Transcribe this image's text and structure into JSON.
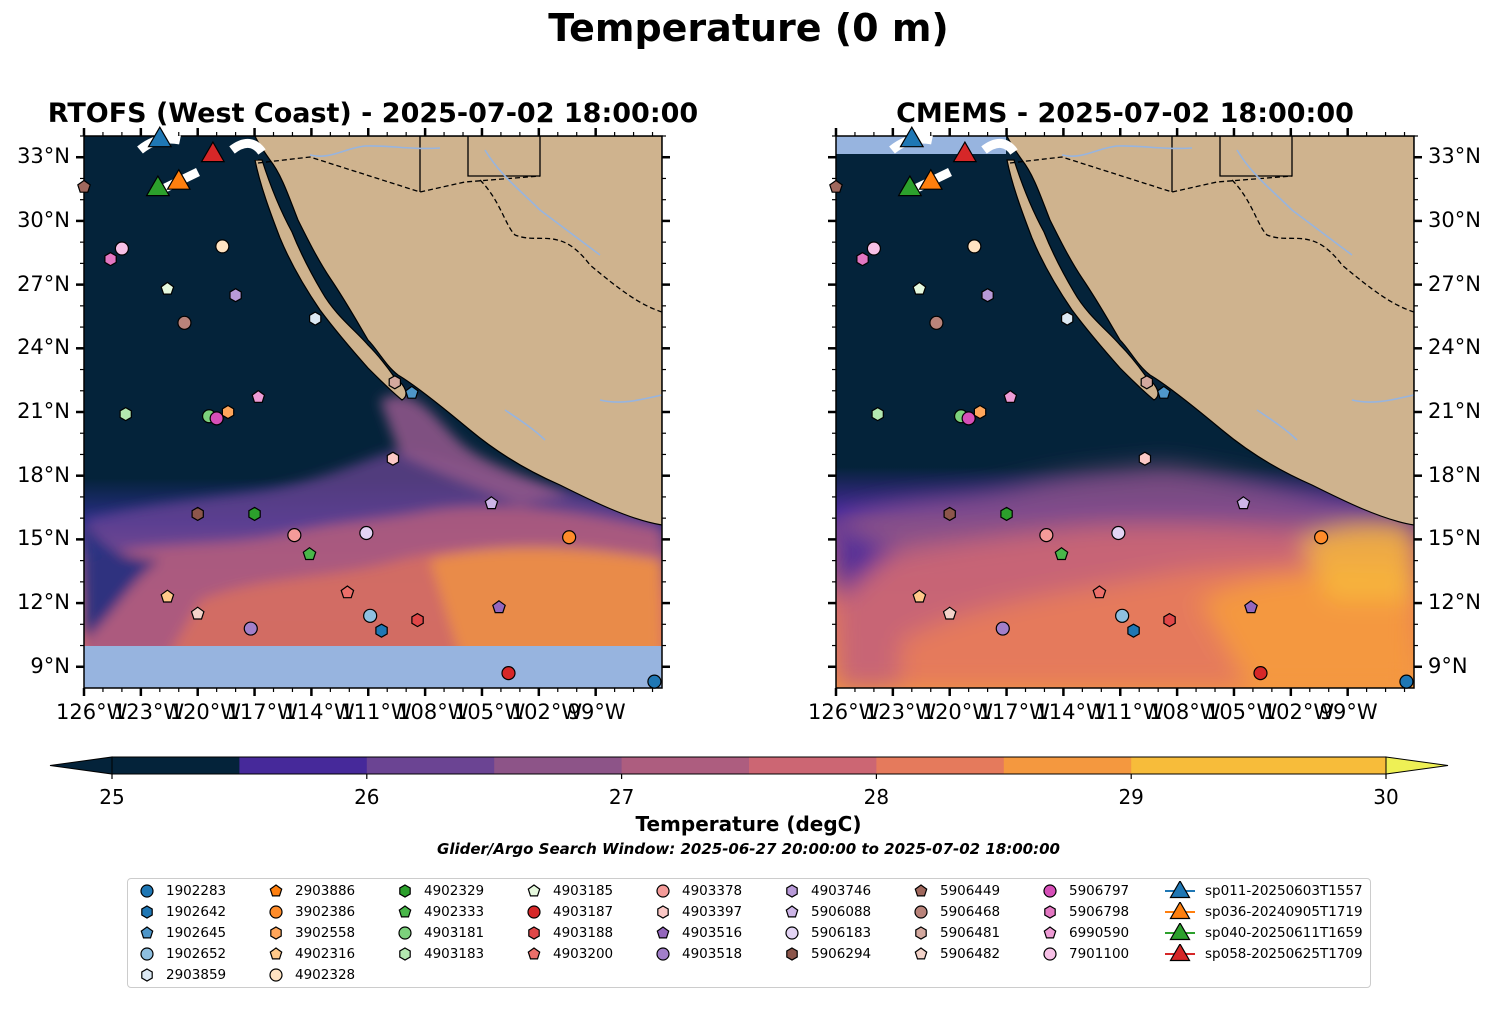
{
  "figure_title": "Temperature (0 m)",
  "panels": [
    {
      "title": "RTOFS (West Coast) - 2025-07-02 18:00:00"
    },
    {
      "title": "CMEMS - 2025-07-02 18:00:00"
    }
  ],
  "map": {
    "lon_range": [
      -126,
      -95.5
    ],
    "lat_range": [
      8,
      34
    ],
    "lon_tick_labels": [
      "126°W",
      "123°W",
      "120°W",
      "117°W",
      "114°W",
      "111°W",
      "108°W",
      "105°W",
      "102°W",
      "99°W"
    ],
    "lat_tick_labels": [
      "9°N",
      "12°N",
      "15°N",
      "18°N",
      "21°N",
      "24°N",
      "27°N",
      "30°N",
      "33°N"
    ],
    "land_color": "#cfb38e",
    "no_data_color": "#97b4df",
    "boundary_style": "dashed"
  },
  "colorbar": {
    "label": "Temperature (degC)",
    "tick_labels": [
      "25",
      "26",
      "27",
      "28",
      "29",
      "30"
    ],
    "range": [
      25,
      30
    ],
    "extend": "both",
    "colors": [
      "#04233a",
      "#20307f",
      "#46299a",
      "#6b4493",
      "#8d5488",
      "#ad5d7f",
      "#cc6673",
      "#e57a5c",
      "#f4983f",
      "#f7bc3a",
      "#eef055"
    ]
  },
  "search_window": "Glider/Argo Search Window: 2025-06-27 20:00:00 to 2025-07-02 18:00:00",
  "legend": [
    {
      "label": "1902283",
      "marker": "circle",
      "color": "#1f77b4"
    },
    {
      "label": "1902642",
      "marker": "hexagon",
      "color": "#1f77b4"
    },
    {
      "label": "1902645",
      "marker": "pentagon",
      "color": "#4e96c9"
    },
    {
      "label": "1902652",
      "marker": "circle",
      "color": "#8ebfe0"
    },
    {
      "label": "2903859",
      "marker": "hexagon",
      "color": "#dce9f4"
    },
    {
      "label": "2903886",
      "marker": "pentagon",
      "color": "#ff7f0e"
    },
    {
      "label": "3902386",
      "marker": "circle",
      "color": "#ff8c2a"
    },
    {
      "label": "3902558",
      "marker": "hexagon",
      "color": "#ffa65b"
    },
    {
      "label": "4902316",
      "marker": "pentagon",
      "color": "#ffc98a"
    },
    {
      "label": "4902328",
      "marker": "circle",
      "color": "#ffe3c2"
    },
    {
      "label": "4902329",
      "marker": "hexagon",
      "color": "#2ca02c"
    },
    {
      "label": "4902333",
      "marker": "pentagon",
      "color": "#49b649"
    },
    {
      "label": "4903181",
      "marker": "circle",
      "color": "#7cd17c"
    },
    {
      "label": "4903183",
      "marker": "hexagon",
      "color": "#b3e8b0"
    },
    {
      "label": "4903185",
      "marker": "pentagon",
      "color": "#e6f9de"
    },
    {
      "label": "4903187",
      "marker": "circle",
      "color": "#d62728"
    },
    {
      "label": "4903188",
      "marker": "hexagon",
      "color": "#e04748"
    },
    {
      "label": "4903200",
      "marker": "pentagon",
      "color": "#ec6f6a"
    },
    {
      "label": "4903378",
      "marker": "circle",
      "color": "#f49b99"
    },
    {
      "label": "4903397",
      "marker": "hexagon",
      "color": "#fbc8c6"
    },
    {
      "label": "4903516",
      "marker": "pentagon",
      "color": "#9467bd"
    },
    {
      "label": "4903518",
      "marker": "circle",
      "color": "#a27fca"
    },
    {
      "label": "4903746",
      "marker": "hexagon",
      "color": "#b89ad8"
    },
    {
      "label": "5906088",
      "marker": "pentagon",
      "color": "#cdb5e7"
    },
    {
      "label": "5906183",
      "marker": "circle",
      "color": "#e3d4f4"
    },
    {
      "label": "5906294",
      "marker": "hexagon",
      "color": "#8c564b"
    },
    {
      "label": "5906449",
      "marker": "pentagon",
      "color": "#a0685d"
    },
    {
      "label": "5906468",
      "marker": "circle",
      "color": "#b9837a"
    },
    {
      "label": "5906481",
      "marker": "hexagon",
      "color": "#d3a89e"
    },
    {
      "label": "5906482",
      "marker": "pentagon",
      "color": "#f3d3c9"
    },
    {
      "label": "5906797",
      "marker": "circle",
      "color": "#d64fb8"
    },
    {
      "label": "5906798",
      "marker": "hexagon",
      "color": "#e377c2"
    },
    {
      "label": "6990590",
      "marker": "pentagon",
      "color": "#ee9bd5"
    },
    {
      "label": "7901100",
      "marker": "circle",
      "color": "#f7c0e6"
    },
    {
      "label": "sp011-20250603T1557",
      "marker": "triangle",
      "color": "#1f77b4"
    },
    {
      "label": "sp036-20240905T1719",
      "marker": "triangle",
      "color": "#ff7f0e"
    },
    {
      "label": "sp040-20250611T1659",
      "marker": "triangle",
      "color": "#2ca02c"
    },
    {
      "label": "sp058-20250625T1709",
      "marker": "triangle",
      "color": "#d62728"
    }
  ],
  "observations": [
    {
      "id": "1902283",
      "lon": -95.9,
      "lat": 8.3
    },
    {
      "id": "1902642",
      "lon": -110.3,
      "lat": 10.7
    },
    {
      "id": "1902645",
      "lon": -108.7,
      "lat": 21.9
    },
    {
      "id": "1902652",
      "lon": -110.9,
      "lat": 11.4
    },
    {
      "id": "2903859",
      "lon": -113.8,
      "lat": 25.4
    },
    {
      "id": "2903886",
      "lon": -121.0,
      "lat": 31.8
    },
    {
      "id": "3902386",
      "lon": -100.4,
      "lat": 15.1
    },
    {
      "id": "3902558",
      "lon": -118.4,
      "lat": 21.0
    },
    {
      "id": "4902316",
      "lon": -121.6,
      "lat": 12.3
    },
    {
      "id": "4902328",
      "lon": -118.7,
      "lat": 28.8
    },
    {
      "id": "4902329",
      "lon": -117.0,
      "lat": 16.2
    },
    {
      "id": "4902333",
      "lon": -114.1,
      "lat": 14.3
    },
    {
      "id": "4903181",
      "lon": -119.4,
      "lat": 20.8
    },
    {
      "id": "4903183",
      "lon": -123.8,
      "lat": 20.9
    },
    {
      "id": "4903185",
      "lon": -121.6,
      "lat": 26.8
    },
    {
      "id": "4903187",
      "lon": -103.6,
      "lat": 8.7
    },
    {
      "id": "4903188",
      "lon": -108.4,
      "lat": 11.2
    },
    {
      "id": "4903200",
      "lon": -112.1,
      "lat": 12.5
    },
    {
      "id": "4903378",
      "lon": -114.9,
      "lat": 15.2
    },
    {
      "id": "4903397",
      "lon": -109.7,
      "lat": 18.8
    },
    {
      "id": "4903516",
      "lon": -104.1,
      "lat": 11.8
    },
    {
      "id": "4903518",
      "lon": -117.2,
      "lat": 10.8
    },
    {
      "id": "4903746",
      "lon": -118.0,
      "lat": 26.5
    },
    {
      "id": "5906088",
      "lon": -104.5,
      "lat": 16.7
    },
    {
      "id": "5906183",
      "lon": -111.1,
      "lat": 15.3
    },
    {
      "id": "5906294",
      "lon": -120.0,
      "lat": 16.2
    },
    {
      "id": "5906449",
      "lon": -126.0,
      "lat": 31.6
    },
    {
      "id": "5906468",
      "lon": -120.7,
      "lat": 25.2
    },
    {
      "id": "5906481",
      "lon": -109.6,
      "lat": 22.4
    },
    {
      "id": "5906482",
      "lon": -120.0,
      "lat": 11.5
    },
    {
      "id": "5906797",
      "lon": -119.0,
      "lat": 20.7
    },
    {
      "id": "5906798",
      "lon": -124.6,
      "lat": 28.2
    },
    {
      "id": "6990590",
      "lon": -116.8,
      "lat": 21.7
    },
    {
      "id": "7901100",
      "lon": -124.0,
      "lat": 28.7
    },
    {
      "id": "sp011-20250603T1557",
      "lon": -122.0,
      "lat": 33.8
    },
    {
      "id": "sp036-20240905T1719",
      "lon": -121.0,
      "lat": 31.8
    },
    {
      "id": "sp040-20250611T1659",
      "lon": -122.1,
      "lat": 31.5
    },
    {
      "id": "sp058-20250625T1709",
      "lon": -119.2,
      "lat": 33.1
    }
  ]
}
